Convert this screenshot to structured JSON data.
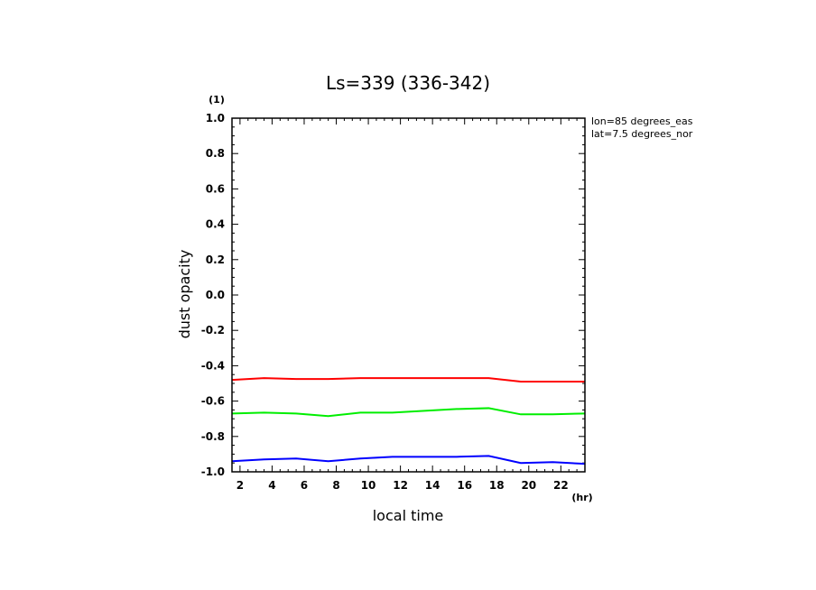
{
  "chart_data": {
    "type": "line",
    "title": "Ls=339 (336-342)",
    "xlabel": "local time",
    "ylabel": "dust opacity",
    "x_unit": "(hr)",
    "y_unit": "(1)",
    "xlim": [
      1.5,
      23.5
    ],
    "ylim": [
      -1.0,
      1.0
    ],
    "x_ticks": [
      2,
      4,
      6,
      8,
      10,
      12,
      14,
      16,
      18,
      20,
      22
    ],
    "x_tick_labels": [
      "2",
      "4",
      "6",
      "8",
      "10",
      "12",
      "14",
      "16",
      "18",
      "20",
      "22"
    ],
    "y_ticks": [
      -1.0,
      -0.8,
      -0.6,
      -0.4,
      -0.2,
      0.0,
      0.2,
      0.4,
      0.6,
      0.8,
      1.0
    ],
    "y_tick_labels": [
      "-1.0",
      "-0.8",
      "-0.6",
      "-0.4",
      "-0.2",
      "0.0",
      "0.2",
      "0.4",
      "0.6",
      "0.8",
      "1.0"
    ],
    "annotations": [
      "lon=85 degrees_eas",
      "lat=7.5 degrees_nor"
    ],
    "x": [
      1.5,
      3.5,
      5.5,
      7.5,
      9.5,
      11.5,
      13.5,
      15.5,
      17.5,
      19.5,
      21.5,
      23.5
    ],
    "series": [
      {
        "name": "red",
        "color": "#ff0000",
        "values": [
          -0.48,
          -0.47,
          -0.475,
          -0.475,
          -0.47,
          -0.47,
          -0.47,
          -0.47,
          -0.47,
          -0.49,
          -0.49,
          -0.49
        ]
      },
      {
        "name": "green",
        "color": "#00ee00",
        "values": [
          -0.67,
          -0.665,
          -0.67,
          -0.685,
          -0.665,
          -0.665,
          -0.655,
          -0.645,
          -0.64,
          -0.675,
          -0.675,
          -0.67
        ]
      },
      {
        "name": "blue",
        "color": "#0000ff",
        "values": [
          -0.94,
          -0.93,
          -0.925,
          -0.94,
          -0.925,
          -0.915,
          -0.915,
          -0.915,
          -0.91,
          -0.95,
          -0.945,
          -0.955
        ]
      }
    ]
  }
}
